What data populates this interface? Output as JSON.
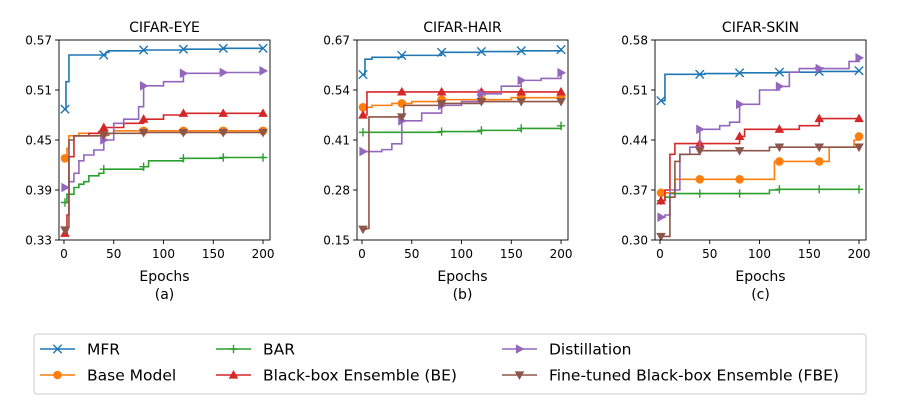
{
  "chart_data": [
    {
      "type": "line",
      "title": "CIFAR-EYE",
      "xlabel": "Epochs",
      "caption": "(a)",
      "xlim": [
        -5,
        207
      ],
      "ylim": [
        0.33,
        0.57
      ],
      "xticks": [
        0,
        50,
        100,
        150,
        200
      ],
      "yticks": [
        0.33,
        0.39,
        0.45,
        0.51,
        0.57
      ],
      "ytick_labels": [
        "0.33",
        "0.39",
        "0.45",
        "0.51",
        "0.57"
      ],
      "series": [
        {
          "key": "mfr",
          "points": [
            [
              1,
              0.487
            ],
            [
              2,
              0.52
            ],
            [
              5,
              0.552
            ],
            [
              40,
              0.552
            ],
            [
              42,
              0.555
            ],
            [
              45,
              0.557
            ],
            [
              80,
              0.558
            ],
            [
              120,
              0.559
            ],
            [
              160,
              0.56
            ],
            [
              200,
              0.56
            ]
          ]
        },
        {
          "key": "base",
          "points": [
            [
              1,
              0.428
            ],
            [
              3,
              0.44
            ],
            [
              5,
              0.455
            ],
            [
              15,
              0.458
            ],
            [
              40,
              0.458
            ],
            [
              50,
              0.461
            ],
            [
              80,
              0.461
            ],
            [
              120,
              0.461
            ],
            [
              160,
              0.461
            ],
            [
              200,
              0.461
            ]
          ]
        },
        {
          "key": "bar",
          "points": [
            [
              1,
              0.375
            ],
            [
              3,
              0.385
            ],
            [
              10,
              0.393
            ],
            [
              15,
              0.397
            ],
            [
              20,
              0.4
            ],
            [
              25,
              0.407
            ],
            [
              35,
              0.41
            ],
            [
              40,
              0.415
            ],
            [
              70,
              0.415
            ],
            [
              80,
              0.418
            ],
            [
              85,
              0.425
            ],
            [
              120,
              0.428
            ],
            [
              160,
              0.429
            ],
            [
              200,
              0.429
            ]
          ]
        },
        {
          "key": "be",
          "points": [
            [
              1,
              0.338
            ],
            [
              3,
              0.36
            ],
            [
              5,
              0.43
            ],
            [
              10,
              0.455
            ],
            [
              25,
              0.458
            ],
            [
              35,
              0.46
            ],
            [
              40,
              0.465
            ],
            [
              60,
              0.47
            ],
            [
              80,
              0.475
            ],
            [
              100,
              0.48
            ],
            [
              120,
              0.482
            ],
            [
              160,
              0.482
            ],
            [
              200,
              0.482
            ]
          ]
        },
        {
          "key": "distill",
          "points": [
            [
              1,
              0.393
            ],
            [
              5,
              0.4
            ],
            [
              10,
              0.41
            ],
            [
              15,
              0.425
            ],
            [
              20,
              0.432
            ],
            [
              30,
              0.438
            ],
            [
              40,
              0.45
            ],
            [
              50,
              0.47
            ],
            [
              60,
              0.475
            ],
            [
              75,
              0.49
            ],
            [
              80,
              0.515
            ],
            [
              100,
              0.52
            ],
            [
              120,
              0.53
            ],
            [
              160,
              0.531
            ],
            [
              200,
              0.533
            ]
          ]
        },
        {
          "key": "fbe",
          "points": [
            [
              1,
              0.342
            ],
            [
              4,
              0.345
            ],
            [
              5,
              0.45
            ],
            [
              10,
              0.455
            ],
            [
              40,
              0.456
            ],
            [
              45,
              0.458
            ],
            [
              80,
              0.459
            ],
            [
              120,
              0.459
            ],
            [
              160,
              0.459
            ],
            [
              200,
              0.459
            ]
          ]
        }
      ]
    },
    {
      "type": "line",
      "title": "CIFAR-HAIR",
      "xlabel": "Epochs",
      "caption": "(b)",
      "xlim": [
        -5,
        207
      ],
      "ylim": [
        0.15,
        0.67
      ],
      "xticks": [
        0,
        50,
        100,
        150,
        200
      ],
      "yticks": [
        0.15,
        0.28,
        0.41,
        0.54,
        0.67
      ],
      "ytick_labels": [
        "0.15",
        "0.28",
        "0.41",
        "0.54",
        "0.67"
      ],
      "series": [
        {
          "key": "mfr",
          "points": [
            [
              1,
              0.58
            ],
            [
              3,
              0.62
            ],
            [
              10,
              0.625
            ],
            [
              40,
              0.63
            ],
            [
              80,
              0.638
            ],
            [
              120,
              0.64
            ],
            [
              160,
              0.642
            ],
            [
              200,
              0.645
            ]
          ]
        },
        {
          "key": "base",
          "points": [
            [
              1,
              0.495
            ],
            [
              5,
              0.495
            ],
            [
              10,
              0.5
            ],
            [
              20,
              0.5
            ],
            [
              30,
              0.505
            ],
            [
              40,
              0.505
            ],
            [
              50,
              0.51
            ],
            [
              80,
              0.515
            ],
            [
              120,
              0.515
            ],
            [
              150,
              0.52
            ],
            [
              160,
              0.52
            ],
            [
              200,
              0.522
            ]
          ]
        },
        {
          "key": "bar",
          "points": [
            [
              1,
              0.43
            ],
            [
              10,
              0.43
            ],
            [
              40,
              0.43
            ],
            [
              80,
              0.432
            ],
            [
              120,
              0.435
            ],
            [
              160,
              0.44
            ],
            [
              200,
              0.447
            ]
          ]
        },
        {
          "key": "be",
          "points": [
            [
              1,
              0.475
            ],
            [
              5,
              0.535
            ],
            [
              40,
              0.535
            ],
            [
              80,
              0.535
            ],
            [
              120,
              0.535
            ],
            [
              160,
              0.535
            ],
            [
              200,
              0.535
            ]
          ]
        },
        {
          "key": "distill",
          "points": [
            [
              1,
              0.38
            ],
            [
              10,
              0.38
            ],
            [
              20,
              0.385
            ],
            [
              30,
              0.4
            ],
            [
              40,
              0.46
            ],
            [
              60,
              0.48
            ],
            [
              80,
              0.5
            ],
            [
              100,
              0.51
            ],
            [
              120,
              0.53
            ],
            [
              140,
              0.55
            ],
            [
              160,
              0.565
            ],
            [
              180,
              0.57
            ],
            [
              200,
              0.585
            ]
          ]
        },
        {
          "key": "fbe",
          "points": [
            [
              1,
              0.178
            ],
            [
              4,
              0.18
            ],
            [
              7,
              0.47
            ],
            [
              40,
              0.47
            ],
            [
              42,
              0.5
            ],
            [
              80,
              0.505
            ],
            [
              120,
              0.51
            ],
            [
              160,
              0.51
            ],
            [
              200,
              0.51
            ]
          ]
        }
      ]
    },
    {
      "type": "line",
      "title": "CIFAR-SKIN",
      "xlabel": "Epochs",
      "caption": "(c)",
      "xlim": [
        -5,
        207
      ],
      "ylim": [
        0.3,
        0.58
      ],
      "xticks": [
        0,
        50,
        100,
        150,
        200
      ],
      "yticks": [
        0.3,
        0.37,
        0.44,
        0.51,
        0.58
      ],
      "ytick_labels": [
        "0.30",
        "0.37",
        "0.44",
        "0.51",
        "0.58"
      ],
      "series": [
        {
          "key": "mfr",
          "points": [
            [
              1,
              0.495
            ],
            [
              5,
              0.532
            ],
            [
              40,
              0.532
            ],
            [
              45,
              0.533
            ],
            [
              80,
              0.534
            ],
            [
              120,
              0.535
            ],
            [
              160,
              0.536
            ],
            [
              200,
              0.537
            ]
          ]
        },
        {
          "key": "base",
          "points": [
            [
              1,
              0.366
            ],
            [
              10,
              0.366
            ],
            [
              15,
              0.385
            ],
            [
              40,
              0.385
            ],
            [
              80,
              0.385
            ],
            [
              110,
              0.385
            ],
            [
              115,
              0.41
            ],
            [
              120,
              0.41
            ],
            [
              150,
              0.41
            ],
            [
              160,
              0.41
            ],
            [
              170,
              0.43
            ],
            [
              190,
              0.43
            ],
            [
              195,
              0.44
            ],
            [
              200,
              0.445
            ]
          ]
        },
        {
          "key": "bar",
          "points": [
            [
              1,
              0.355
            ],
            [
              5,
              0.36
            ],
            [
              10,
              0.365
            ],
            [
              40,
              0.365
            ],
            [
              80,
              0.365
            ],
            [
              110,
              0.37
            ],
            [
              120,
              0.371
            ],
            [
              160,
              0.371
            ],
            [
              200,
              0.371
            ]
          ]
        },
        {
          "key": "be",
          "points": [
            [
              1,
              0.355
            ],
            [
              5,
              0.37
            ],
            [
              10,
              0.42
            ],
            [
              15,
              0.435
            ],
            [
              40,
              0.435
            ],
            [
              80,
              0.445
            ],
            [
              85,
              0.455
            ],
            [
              120,
              0.455
            ],
            [
              140,
              0.46
            ],
            [
              160,
              0.47
            ],
            [
              200,
              0.47
            ]
          ]
        },
        {
          "key": "distill",
          "points": [
            [
              1,
              0.332
            ],
            [
              5,
              0.335
            ],
            [
              10,
              0.37
            ],
            [
              20,
              0.42
            ],
            [
              30,
              0.43
            ],
            [
              40,
              0.455
            ],
            [
              60,
              0.46
            ],
            [
              70,
              0.465
            ],
            [
              80,
              0.49
            ],
            [
              100,
              0.51
            ],
            [
              110,
              0.51
            ],
            [
              120,
              0.515
            ],
            [
              130,
              0.535
            ],
            [
              140,
              0.54
            ],
            [
              160,
              0.54
            ],
            [
              180,
              0.54
            ],
            [
              190,
              0.55
            ],
            [
              200,
              0.555
            ]
          ]
        },
        {
          "key": "fbe",
          "points": [
            [
              1,
              0.305
            ],
            [
              6,
              0.305
            ],
            [
              10,
              0.36
            ],
            [
              15,
              0.41
            ],
            [
              20,
              0.42
            ],
            [
              40,
              0.425
            ],
            [
              80,
              0.425
            ],
            [
              100,
              0.425
            ],
            [
              110,
              0.43
            ],
            [
              120,
              0.43
            ],
            [
              160,
              0.43
            ],
            [
              200,
              0.43
            ]
          ]
        }
      ]
    }
  ],
  "legend": {
    "placement": "bottom",
    "entries": [
      {
        "key": "mfr",
        "label": "MFR",
        "color": "#1f77b4",
        "marker": "x"
      },
      {
        "key": "base",
        "label": "Base Model",
        "color": "#ff7f0e",
        "marker": "circle"
      },
      {
        "key": "bar",
        "label": "BAR",
        "color": "#2ca02c",
        "marker": "plus"
      },
      {
        "key": "be",
        "label": "Black-box Ensemble (BE)",
        "color": "#d62728",
        "marker": "triangle-up"
      },
      {
        "key": "distill",
        "label": "Distillation",
        "color": "#9467bd",
        "marker": "triangle-right"
      },
      {
        "key": "fbe",
        "label": "Fine-tuned Black-box Ensemble (FBE)",
        "color": "#8c564b",
        "marker": "triangle-down"
      }
    ]
  }
}
